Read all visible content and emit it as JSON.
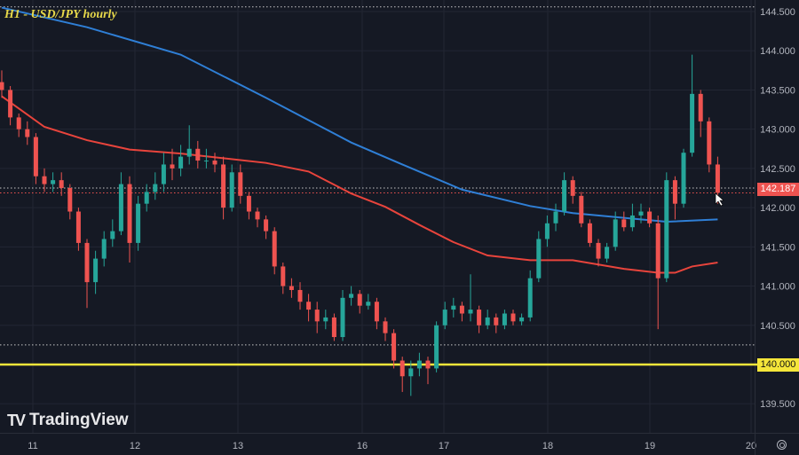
{
  "chart_data": {
    "type": "candlestick",
    "title": "H1 - USD/JPY hourly",
    "y_axis": {
      "range": [
        139.25,
        144.6
      ],
      "ticks": [
        "144.500",
        "144.000",
        "143.500",
        "143.000",
        "142.500",
        "142.000",
        "141.500",
        "141.000",
        "140.500",
        "140.000",
        "139.500"
      ],
      "position": "right"
    },
    "x_axis": {
      "ticks": [
        "11",
        "12",
        "13",
        "16",
        "17",
        "18",
        "19",
        "20"
      ]
    },
    "grid": true,
    "colors": {
      "up": "#26a69a",
      "down": "#ef5350",
      "ma_blue": "#2f7fd6",
      "ma_red": "#e8443c",
      "level": "#f5e63a",
      "background": "#151924"
    },
    "candles": [
      [
        143.6,
        143.75,
        143.4,
        143.5
      ],
      [
        143.5,
        143.55,
        143.05,
        143.15
      ],
      [
        143.15,
        143.2,
        142.9,
        143.0
      ],
      [
        143.0,
        143.1,
        142.8,
        142.9
      ],
      [
        142.9,
        142.95,
        142.3,
        142.4
      ],
      [
        142.4,
        142.5,
        142.2,
        142.3
      ],
      [
        142.3,
        142.45,
        142.2,
        142.35
      ],
      [
        142.35,
        142.45,
        142.15,
        142.25
      ],
      [
        142.25,
        142.3,
        141.85,
        141.95
      ],
      [
        141.95,
        142.0,
        141.45,
        141.55
      ],
      [
        141.55,
        141.6,
        140.72,
        141.05
      ],
      [
        141.05,
        141.45,
        140.9,
        141.35
      ],
      [
        141.35,
        141.7,
        141.25,
        141.6
      ],
      [
        141.6,
        141.85,
        141.5,
        141.7
      ],
      [
        141.7,
        142.45,
        141.65,
        142.3
      ],
      [
        142.3,
        142.4,
        141.3,
        141.55
      ],
      [
        141.55,
        142.15,
        141.45,
        142.05
      ],
      [
        142.05,
        142.3,
        141.95,
        142.2
      ],
      [
        142.2,
        142.45,
        142.1,
        142.3
      ],
      [
        142.3,
        142.7,
        142.2,
        142.55
      ],
      [
        142.55,
        142.75,
        142.35,
        142.5
      ],
      [
        142.5,
        142.8,
        142.4,
        142.65
      ],
      [
        142.65,
        143.05,
        142.55,
        142.75
      ],
      [
        142.75,
        142.85,
        142.5,
        142.6
      ],
      [
        142.6,
        142.75,
        142.5,
        142.6
      ],
      [
        142.6,
        142.7,
        142.45,
        142.55
      ],
      [
        142.55,
        142.65,
        141.85,
        142.0
      ],
      [
        142.0,
        142.55,
        141.95,
        142.45
      ],
      [
        142.45,
        142.55,
        142.05,
        142.15
      ],
      [
        142.15,
        142.2,
        141.85,
        141.95
      ],
      [
        141.95,
        142.0,
        141.75,
        141.85
      ],
      [
        141.85,
        141.9,
        141.6,
        141.7
      ],
      [
        141.7,
        141.75,
        141.15,
        141.25
      ],
      [
        141.25,
        141.3,
        140.9,
        141.0
      ],
      [
        141.0,
        141.1,
        140.85,
        140.95
      ],
      [
        140.95,
        141.05,
        140.7,
        140.8
      ],
      [
        140.8,
        140.9,
        140.55,
        140.7
      ],
      [
        140.7,
        140.8,
        140.4,
        140.55
      ],
      [
        140.55,
        140.7,
        140.45,
        140.6
      ],
      [
        140.6,
        140.65,
        140.3,
        140.35
      ],
      [
        140.35,
        140.95,
        140.3,
        140.85
      ],
      [
        140.85,
        141.0,
        140.75,
        140.9
      ],
      [
        140.9,
        140.95,
        140.65,
        140.75
      ],
      [
        140.75,
        140.9,
        140.7,
        140.8
      ],
      [
        140.8,
        140.85,
        140.45,
        140.55
      ],
      [
        140.55,
        140.6,
        140.3,
        140.4
      ],
      [
        140.4,
        140.45,
        139.95,
        140.05
      ],
      [
        140.05,
        140.1,
        139.65,
        139.85
      ],
      [
        139.85,
        140.05,
        139.6,
        139.95
      ],
      [
        139.95,
        140.15,
        139.85,
        140.05
      ],
      [
        140.05,
        140.1,
        139.75,
        139.95
      ],
      [
        139.95,
        140.55,
        139.9,
        140.5
      ],
      [
        140.5,
        140.8,
        140.45,
        140.7
      ],
      [
        140.7,
        140.85,
        140.6,
        140.75
      ],
      [
        140.75,
        140.8,
        140.55,
        140.65
      ],
      [
        140.65,
        141.15,
        140.55,
        140.7
      ],
      [
        140.7,
        140.75,
        140.4,
        140.5
      ],
      [
        140.5,
        140.7,
        140.45,
        140.6
      ],
      [
        140.6,
        140.65,
        140.4,
        140.5
      ],
      [
        140.5,
        140.7,
        140.45,
        140.65
      ],
      [
        140.65,
        140.7,
        140.5,
        140.55
      ],
      [
        140.55,
        140.65,
        140.5,
        140.6
      ],
      [
        140.6,
        141.2,
        140.55,
        141.1
      ],
      [
        141.1,
        141.7,
        141.05,
        141.6
      ],
      [
        141.6,
        141.9,
        141.5,
        141.8
      ],
      [
        141.8,
        142.05,
        141.7,
        141.95
      ],
      [
        141.95,
        142.45,
        141.9,
        142.35
      ],
      [
        142.35,
        142.4,
        142.05,
        142.15
      ],
      [
        142.15,
        142.2,
        141.75,
        141.8
      ],
      [
        141.8,
        141.85,
        141.5,
        141.55
      ],
      [
        141.55,
        141.6,
        141.25,
        141.35
      ],
      [
        141.35,
        141.55,
        141.3,
        141.5
      ],
      [
        141.5,
        141.95,
        141.45,
        141.85
      ],
      [
        141.85,
        141.95,
        141.7,
        141.75
      ],
      [
        141.75,
        142.05,
        141.7,
        141.9
      ],
      [
        141.9,
        142.05,
        141.8,
        141.95
      ],
      [
        141.95,
        142.0,
        141.75,
        141.8
      ],
      [
        141.8,
        141.9,
        140.45,
        141.1
      ],
      [
        141.1,
        142.45,
        141.05,
        142.35
      ],
      [
        142.35,
        142.4,
        141.85,
        142.05
      ],
      [
        142.05,
        142.75,
        142.0,
        142.7
      ],
      [
        142.7,
        143.95,
        142.65,
        143.45
      ],
      [
        143.45,
        143.5,
        142.9,
        143.1
      ],
      [
        143.1,
        143.15,
        142.45,
        142.55
      ],
      [
        142.55,
        142.65,
        142.05,
        142.19
      ]
    ],
    "ma_blue": [
      [
        0,
        144.55
      ],
      [
        10,
        144.3
      ],
      [
        21,
        143.95
      ],
      [
        31,
        143.4
      ],
      [
        41,
        142.83
      ],
      [
        47,
        142.55
      ],
      [
        54,
        142.23
      ],
      [
        62,
        142.02
      ],
      [
        67,
        141.93
      ],
      [
        73,
        141.87
      ],
      [
        78,
        141.82
      ],
      [
        84,
        141.85
      ]
    ],
    "ma_red": [
      [
        0,
        143.42
      ],
      [
        5,
        143.03
      ],
      [
        10,
        142.86
      ],
      [
        15,
        142.74
      ],
      [
        21,
        142.69
      ],
      [
        26,
        142.63
      ],
      [
        31,
        142.57
      ],
      [
        36,
        142.46
      ],
      [
        41,
        142.18
      ],
      [
        45,
        142.01
      ],
      [
        49,
        141.78
      ],
      [
        53,
        141.56
      ],
      [
        57,
        141.39
      ],
      [
        62,
        141.33
      ],
      [
        67,
        141.33
      ],
      [
        73,
        141.22
      ],
      [
        77,
        141.17
      ],
      [
        79,
        141.17
      ],
      [
        81,
        141.25
      ],
      [
        84,
        141.3
      ]
    ],
    "horizontal_levels": {
      "support": 140.0,
      "last_price": 142.187,
      "dotted": [
        144.56,
        142.25,
        140.25
      ]
    },
    "last_price_label": "142.187",
    "level_label": "140.000"
  },
  "branding": {
    "logo_text": "TradingView"
  }
}
